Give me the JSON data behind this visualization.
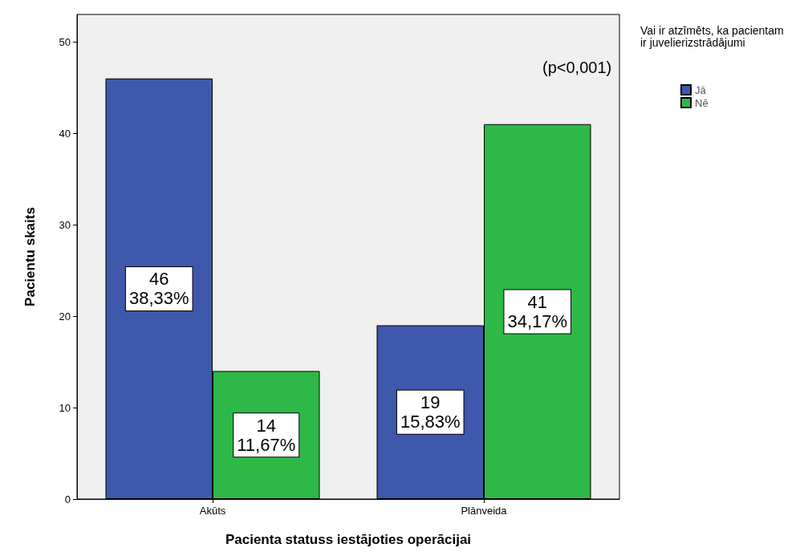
{
  "chart_data": {
    "type": "bar",
    "xlabel": "Pacienta statuss iestājoties operācijai",
    "ylabel": "Pacientu skaits",
    "legend_title": "Vai ir atzīmēts, ka pacientam ir juvelierizstrādājumi",
    "categories": [
      "Akūts",
      "Plānveida"
    ],
    "series": [
      {
        "name": "Jā",
        "color": "#3e58ac",
        "values": [
          46,
          19
        ],
        "value_labels": [
          "46\n38,33%",
          "19\n15,83%"
        ]
      },
      {
        "name": "Nē",
        "color": "#2eb848",
        "values": [
          14,
          41
        ],
        "value_labels": [
          "14\n11,67%",
          "41\n34,17%"
        ]
      }
    ],
    "ylim": [
      0,
      53
    ],
    "yticks": [
      0,
      10,
      20,
      30,
      40,
      50
    ],
    "grid": false,
    "legend": "top right",
    "annotations": [
      "(p<0,001)"
    ]
  }
}
